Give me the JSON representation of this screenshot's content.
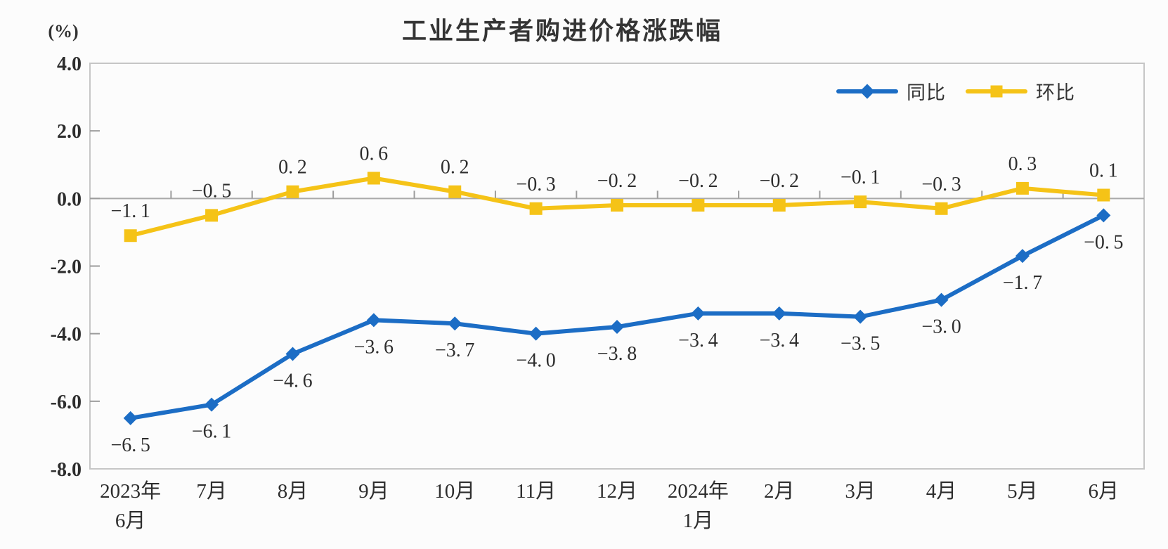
{
  "title": "工业生产者购进价格涨跌幅",
  "unit_label": "(%)",
  "legend": [
    {
      "label": "同比",
      "marker": "diamond",
      "color": "#1c6dc5"
    },
    {
      "label": "环比",
      "marker": "square",
      "color": "#f5c317"
    }
  ],
  "colors": {
    "frame": "#c6c6c6",
    "zero_line": "#a9a9a9",
    "tick": "#9c9c9c",
    "text": "#2e2e2e",
    "series_yoy": "#1c6dc5",
    "series_mom": "#f5c317"
  },
  "chart_data": {
    "type": "line",
    "title": "工业生产者购进价格涨跌幅",
    "ylabel": "(%)",
    "xlabel": "",
    "grid": false,
    "legend_position": "top-right",
    "ylim": [
      -8.0,
      4.0
    ],
    "ytick_step": 2.0,
    "ytick_labels": [
      "4.0",
      "2.0",
      "0.0",
      "-2.0",
      "-4.0",
      "-6.0",
      "-8.0"
    ],
    "categories": [
      "2023年\n6月",
      "7月",
      "8月",
      "9月",
      "10月",
      "11月",
      "12月",
      "2024年\n1月",
      "2月",
      "3月",
      "4月",
      "5月",
      "6月"
    ],
    "series": [
      {
        "name": "同比",
        "color": "#1c6dc5",
        "marker": "diamond",
        "label_position": "below",
        "values": [
          -6.5,
          -6.1,
          -4.6,
          -3.6,
          -3.7,
          -4.0,
          -3.8,
          -3.4,
          -3.4,
          -3.5,
          -3.0,
          -1.7,
          -0.5
        ],
        "data_labels": [
          "-6.5",
          "-6.1",
          "-4.6",
          "-3.6",
          "-3.7",
          "-4.0",
          "-3.8",
          "-3.4",
          "-3.4",
          "-3.5",
          "-3.0",
          "-1.7",
          "-0.5"
        ]
      },
      {
        "name": "环比",
        "color": "#f5c317",
        "marker": "square",
        "label_position": "above",
        "values": [
          -1.1,
          -0.5,
          0.2,
          0.6,
          0.2,
          -0.3,
          -0.2,
          -0.2,
          -0.2,
          -0.1,
          -0.3,
          0.3,
          0.1
        ],
        "data_labels": [
          "-1.1",
          "-0.5",
          "0.2",
          "0.6",
          "0.2",
          "-0.3",
          "-0.2",
          "-0.2",
          "-0.2",
          "-0.1",
          "-0.3",
          "0.3",
          "0.1"
        ]
      }
    ]
  }
}
